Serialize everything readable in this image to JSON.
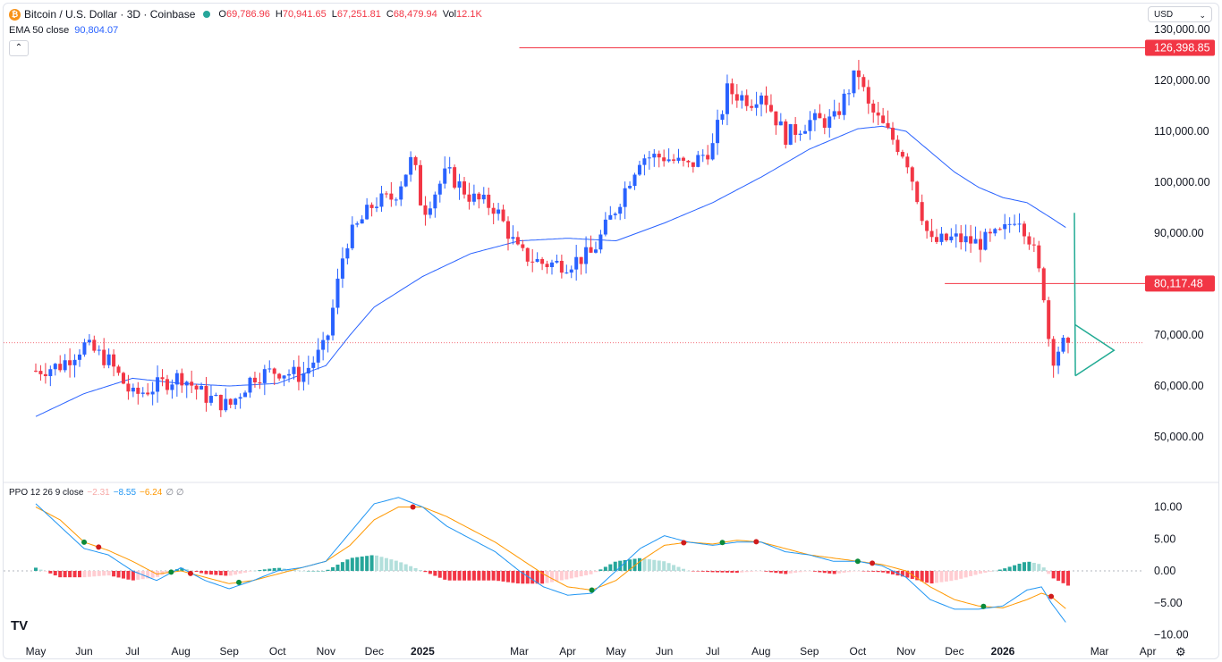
{
  "header": {
    "symbol": "Bitcoin / U.S. Dollar · 3D · Coinbase",
    "coin_glyph": "₿",
    "ohlc": [
      {
        "key": "O",
        "value": "69,786.96"
      },
      {
        "key": "H",
        "value": "70,941.65"
      },
      {
        "key": "L",
        "value": "67,251.81"
      },
      {
        "key": "C",
        "value": "68,479.94"
      },
      {
        "key": "Vol",
        "value": "12.1K"
      }
    ],
    "ema_label": "EMA 50 close",
    "ema_value": "90,804.07",
    "collapse_glyph": "⌃"
  },
  "currency": {
    "label": "USD",
    "chevron": "⌄"
  },
  "ppo_legend": {
    "label": "PPO 12 26 9 close",
    "hist": "−2.31",
    "ppo": "−8.55",
    "signal": "−6.24",
    "extra": "∅ ∅"
  },
  "colors": {
    "up": "#2962ff",
    "down": "#f23645",
    "ema": "#2962ff",
    "ppo": "#2196f3",
    "signal": "#ff9800",
    "hist_pos": "#26a69a",
    "hist_pos_light": "#b2dfdb",
    "hist_neg": "#f23645",
    "hist_neg_light": "#ffcdd2",
    "triangle": "#22ab94",
    "level": "#f23645"
  },
  "footer": {
    "gear": "⚙"
  },
  "chart_data": [
    {
      "type": "candlestick",
      "title": "Bitcoin / U.S. Dollar · 3D · Coinbase",
      "ylim": [
        40000,
        135000
      ],
      "yticks": [
        50000,
        60000,
        70000,
        80000,
        90000,
        100000,
        110000,
        120000,
        130000
      ],
      "ytick_labels": [
        "50,000.00",
        "60,000.00",
        "70,000.00",
        "80,000.00",
        "90,000.00",
        "100,000.00",
        "110,000.00",
        "120,000.00",
        "130,000.00"
      ],
      "x_labels": [
        "May",
        "Jun",
        "Jul",
        "Aug",
        "Sep",
        "Oct",
        "Nov",
        "Dec",
        "2025",
        "Mar",
        "Apr",
        "May",
        "Jun",
        "Jul",
        "Aug",
        "Sep",
        "Oct",
        "Nov",
        "Dec",
        "2026",
        "Mar",
        "Apr"
      ],
      "x_label_t": [
        0.0,
        1.0,
        2.0,
        3.0,
        4.0,
        5.0,
        6.0,
        7.0,
        8.0,
        10.0,
        11.0,
        12.0,
        13.0,
        14.0,
        15.0,
        16.0,
        17.0,
        18.0,
        19.0,
        20.0,
        22.0,
        23.0
      ],
      "bold_x_labels": [
        "2025",
        "2026"
      ],
      "price_path_anchors": [
        [
          0.0,
          63000
        ],
        [
          0.5,
          64000
        ],
        [
          1.0,
          68000
        ],
        [
          1.5,
          65000
        ],
        [
          2.0,
          58000
        ],
        [
          2.5,
          60000
        ],
        [
          3.0,
          62000
        ],
        [
          3.5,
          58000
        ],
        [
          4.0,
          56000
        ],
        [
          4.5,
          62000
        ],
        [
          5.0,
          63000
        ],
        [
          5.5,
          62000
        ],
        [
          6.0,
          68000
        ],
        [
          6.4,
          88000
        ],
        [
          6.7,
          92000
        ],
        [
          7.0,
          96000
        ],
        [
          7.4,
          97000
        ],
        [
          7.8,
          105000
        ],
        [
          8.0,
          94000
        ],
        [
          8.5,
          102000
        ],
        [
          9.0,
          97000
        ],
        [
          9.5,
          95000
        ],
        [
          10.0,
          86000
        ],
        [
          10.5,
          84000
        ],
        [
          11.0,
          84000
        ],
        [
          11.5,
          86000
        ],
        [
          12.0,
          95000
        ],
        [
          12.5,
          105000
        ],
        [
          13.0,
          105000
        ],
        [
          13.5,
          103000
        ],
        [
          14.0,
          107000
        ],
        [
          14.3,
          118000
        ],
        [
          14.8,
          116000
        ],
        [
          15.0,
          118000
        ],
        [
          15.5,
          109000
        ],
        [
          16.0,
          112000
        ],
        [
          16.5,
          112000
        ],
        [
          17.0,
          122000
        ],
        [
          17.2,
          115000
        ],
        [
          17.6,
          110000
        ],
        [
          18.0,
          105000
        ],
        [
          18.5,
          88000
        ],
        [
          19.0,
          89000
        ],
        [
          19.5,
          88000
        ],
        [
          20.0,
          90000
        ],
        [
          20.3,
          94000
        ],
        [
          20.6,
          88000
        ],
        [
          20.85,
          78000
        ],
        [
          21.0,
          65000
        ],
        [
          21.2,
          68000
        ],
        [
          21.35,
          68480
        ]
      ],
      "candle_count": 213,
      "last_close": 68479.94,
      "ema": {
        "name": "EMA 50 close",
        "last": 90804.07,
        "points": [
          [
            0.0,
            54000
          ],
          [
            1.0,
            58500
          ],
          [
            2.0,
            61500
          ],
          [
            3.0,
            60500
          ],
          [
            4.0,
            60000
          ],
          [
            5.0,
            60500
          ],
          [
            6.0,
            64000
          ],
          [
            6.5,
            70000
          ],
          [
            7.0,
            75500
          ],
          [
            8.0,
            81500
          ],
          [
            9.0,
            86000
          ],
          [
            10.0,
            88500
          ],
          [
            11.0,
            89000
          ],
          [
            12.0,
            88500
          ],
          [
            13.0,
            92000
          ],
          [
            14.0,
            96000
          ],
          [
            15.0,
            101000
          ],
          [
            16.0,
            106500
          ],
          [
            17.0,
            110500
          ],
          [
            17.5,
            111000
          ],
          [
            18.0,
            110000
          ],
          [
            19.0,
            102000
          ],
          [
            19.5,
            99000
          ],
          [
            20.0,
            97000
          ],
          [
            20.5,
            96000
          ],
          [
            21.0,
            93000
          ],
          [
            21.35,
            90804
          ]
        ]
      },
      "levels": [
        {
          "value": 126398.85,
          "label": "126,398.85",
          "t_from": 10.0
        },
        {
          "value": 80117.48,
          "label": "80,117.48",
          "t_from": 18.8
        }
      ],
      "current_price_line": 68479.94,
      "triangle": {
        "apex": [
          22.3,
          67000
        ],
        "top": [
          21.5,
          72000
        ],
        "bottom": [
          21.5,
          62000
        ],
        "spike_from": [
          21.48,
          94000
        ]
      }
    },
    {
      "type": "line+histogram",
      "title": "PPO 12 26 9 close",
      "ylim": [
        -11,
        13
      ],
      "yticks": [
        -10,
        -5,
        0,
        5,
        10
      ],
      "ytick_labels": [
        "−10.00",
        "−5.00",
        "0.00",
        "5.00",
        "10.00"
      ],
      "ppo_points": [
        [
          0.0,
          10.5
        ],
        [
          0.5,
          7.0
        ],
        [
          1.0,
          3.5
        ],
        [
          1.5,
          2.5
        ],
        [
          2.0,
          0.0
        ],
        [
          2.5,
          -1.5
        ],
        [
          3.0,
          0.5
        ],
        [
          3.5,
          -1.5
        ],
        [
          4.0,
          -2.8
        ],
        [
          4.5,
          -1.5
        ],
        [
          5.0,
          0.0
        ],
        [
          5.5,
          0.5
        ],
        [
          6.0,
          1.5
        ],
        [
          6.5,
          6.0
        ],
        [
          7.0,
          10.5
        ],
        [
          7.5,
          11.5
        ],
        [
          8.0,
          10.0
        ],
        [
          8.5,
          7.0
        ],
        [
          9.0,
          5.0
        ],
        [
          9.5,
          3.0
        ],
        [
          10.0,
          0.0
        ],
        [
          10.5,
          -2.5
        ],
        [
          11.0,
          -3.8
        ],
        [
          11.5,
          -3.5
        ],
        [
          12.0,
          0.0
        ],
        [
          12.5,
          3.5
        ],
        [
          13.0,
          5.5
        ],
        [
          13.5,
          4.5
        ],
        [
          14.0,
          4.0
        ],
        [
          14.5,
          4.5
        ],
        [
          15.0,
          4.5
        ],
        [
          15.5,
          3.0
        ],
        [
          16.0,
          2.5
        ],
        [
          16.5,
          1.5
        ],
        [
          17.0,
          1.5
        ],
        [
          17.5,
          0.8
        ],
        [
          18.0,
          -1.0
        ],
        [
          18.5,
          -4.5
        ],
        [
          19.0,
          -6.0
        ],
        [
          19.5,
          -6.0
        ],
        [
          20.0,
          -5.5
        ],
        [
          20.5,
          -3.0
        ],
        [
          20.8,
          -2.5
        ],
        [
          21.0,
          -5.0
        ],
        [
          21.35,
          -8.55
        ]
      ],
      "signal_points": [
        [
          0.0,
          10.0
        ],
        [
          0.5,
          8.0
        ],
        [
          1.0,
          4.5
        ],
        [
          1.5,
          3.2
        ],
        [
          2.0,
          1.5
        ],
        [
          2.5,
          -0.5
        ],
        [
          3.0,
          0.0
        ],
        [
          3.5,
          -1.0
        ],
        [
          4.0,
          -2.0
        ],
        [
          4.5,
          -1.5
        ],
        [
          5.0,
          -0.5
        ],
        [
          5.5,
          0.5
        ],
        [
          6.0,
          1.5
        ],
        [
          6.5,
          4.0
        ],
        [
          7.0,
          8.0
        ],
        [
          7.5,
          10.0
        ],
        [
          8.0,
          10.0
        ],
        [
          8.5,
          8.5
        ],
        [
          9.0,
          6.5
        ],
        [
          9.5,
          4.5
        ],
        [
          10.0,
          2.0
        ],
        [
          10.5,
          -0.5
        ],
        [
          11.0,
          -2.5
        ],
        [
          11.5,
          -3.0
        ],
        [
          12.0,
          -1.5
        ],
        [
          12.5,
          1.5
        ],
        [
          13.0,
          4.0
        ],
        [
          13.5,
          4.5
        ],
        [
          14.0,
          4.2
        ],
        [
          14.5,
          4.8
        ],
        [
          15.0,
          4.5
        ],
        [
          15.5,
          3.5
        ],
        [
          16.0,
          2.5
        ],
        [
          16.5,
          2.0
        ],
        [
          17.0,
          1.5
        ],
        [
          17.5,
          1.0
        ],
        [
          18.0,
          0.0
        ],
        [
          18.5,
          -2.5
        ],
        [
          19.0,
          -4.5
        ],
        [
          19.5,
          -5.5
        ],
        [
          20.0,
          -5.8
        ],
        [
          20.5,
          -4.5
        ],
        [
          20.8,
          -3.5
        ],
        [
          21.0,
          -4.0
        ],
        [
          21.35,
          -6.24
        ]
      ],
      "crossovers": [
        {
          "t": 1.0,
          "color": "green"
        },
        {
          "t": 1.3,
          "color": "red"
        },
        {
          "t": 2.8,
          "color": "green"
        },
        {
          "t": 3.2,
          "color": "red"
        },
        {
          "t": 4.2,
          "color": "green"
        },
        {
          "t": 7.8,
          "color": "red"
        },
        {
          "t": 11.5,
          "color": "green"
        },
        {
          "t": 13.4,
          "color": "red"
        },
        {
          "t": 14.2,
          "color": "green"
        },
        {
          "t": 14.9,
          "color": "red"
        },
        {
          "t": 17.0,
          "color": "green"
        },
        {
          "t": 17.3,
          "color": "red"
        },
        {
          "t": 19.6,
          "color": "green"
        },
        {
          "t": 21.0,
          "color": "red"
        }
      ],
      "hist_last": -2.31
    }
  ]
}
